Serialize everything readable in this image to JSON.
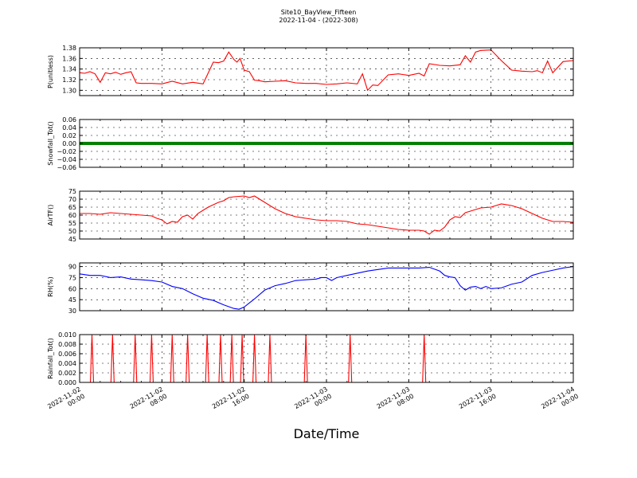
{
  "chart_data": {
    "type": "line",
    "title": "Site10_BayView_Fifteen",
    "subtitle": "2022-11-04 - (2022-308)",
    "xlabel": "Date/Time",
    "x_ticks": [
      "2022-11-02 00:00",
      "2022-11-02 08:00",
      "2022-11-02 16:00",
      "2022-11-03 00:00",
      "2022-11-03 08:00",
      "2022-11-03 16:00",
      "2022-11-04 00:00"
    ],
    "xlim_hours": [
      0,
      48
    ],
    "grid": true,
    "panels": [
      {
        "ylabel": "P(unitless)",
        "ylim": [
          1.29,
          1.38
        ],
        "yticks": [
          "1.30",
          "1.32",
          "1.34",
          "1.36",
          "1.38"
        ],
        "color": "#ff0000",
        "hours": [
          0,
          0.5,
          1,
          1.5,
          2,
          2.5,
          3,
          3.5,
          4,
          4.5,
          5,
          5.5,
          6,
          7,
          8,
          9,
          10,
          11,
          12,
          13,
          13.5,
          14,
          14.5,
          15,
          15.3,
          15.6,
          16,
          16.5,
          17,
          17.5,
          18,
          19,
          20,
          21,
          22,
          23,
          24,
          25,
          26,
          27,
          27.5,
          28,
          28.5,
          29,
          30,
          31,
          32,
          33,
          33.5,
          34,
          35,
          36,
          37,
          37.5,
          38,
          38.5,
          39,
          40,
          41,
          42,
          43,
          44,
          44.5,
          45,
          45.5,
          46,
          47,
          48
        ],
        "values": [
          1.333,
          1.332,
          1.335,
          1.331,
          1.315,
          1.333,
          1.331,
          1.334,
          1.33,
          1.333,
          1.335,
          1.314,
          1.313,
          1.313,
          1.312,
          1.317,
          1.312,
          1.315,
          1.312,
          1.353,
          1.352,
          1.355,
          1.372,
          1.358,
          1.353,
          1.36,
          1.338,
          1.335,
          1.319,
          1.318,
          1.316,
          1.317,
          1.318,
          1.314,
          1.313,
          1.313,
          1.311,
          1.312,
          1.314,
          1.312,
          1.331,
          1.3,
          1.31,
          1.309,
          1.329,
          1.331,
          1.328,
          1.332,
          1.327,
          1.35,
          1.347,
          1.346,
          1.348,
          1.365,
          1.353,
          1.372,
          1.375,
          1.376,
          1.356,
          1.338,
          1.336,
          1.335,
          1.337,
          1.333,
          1.355,
          1.333,
          1.354,
          1.356
        ]
      },
      {
        "ylabel": "Snowfall_Tot()",
        "ylim": [
          -0.06,
          0.06
        ],
        "yticks": [
          "0.06",
          "0.04",
          "0.02",
          "0.00",
          "−0.02",
          "−0.04",
          "−0.06"
        ],
        "color": "#008000",
        "hours": [
          0,
          48
        ],
        "values": [
          0,
          0
        ]
      },
      {
        "ylabel": "AirTF()",
        "ylim": [
          45,
          75
        ],
        "yticks": [
          "45",
          "50",
          "55",
          "60",
          "65",
          "70",
          "75"
        ],
        "color": "#ff0000",
        "hours": [
          0,
          1,
          2,
          3,
          4,
          5,
          6,
          7,
          7.5,
          8,
          8.5,
          9,
          9.5,
          10,
          10.5,
          11,
          11.5,
          12,
          12.5,
          13,
          13.5,
          14,
          14.5,
          15,
          16,
          16.5,
          17,
          18,
          19,
          20,
          21,
          22,
          23,
          24,
          25,
          26,
          27,
          28,
          29,
          30,
          31,
          32,
          32.5,
          33,
          33.5,
          34,
          34.5,
          35,
          35.5,
          36,
          36.5,
          37,
          37.5,
          38,
          39,
          40,
          41,
          42,
          43,
          44,
          45,
          46,
          47,
          48
        ],
        "values": [
          61,
          61,
          60.5,
          61.5,
          61,
          60.5,
          60,
          59.5,
          58,
          57,
          54.5,
          56,
          55.5,
          59,
          60,
          57.5,
          61,
          63,
          65,
          66.5,
          68,
          69,
          71,
          71.5,
          72,
          71,
          72,
          68,
          64,
          61,
          59,
          58,
          57,
          56.5,
          56.5,
          56,
          54.5,
          54,
          53,
          52,
          51,
          50.5,
          50.5,
          50.5,
          50,
          48,
          50.5,
          50,
          52.5,
          57,
          59,
          58.5,
          61.5,
          62.5,
          64.5,
          65,
          67,
          66,
          64,
          61,
          58,
          56,
          56,
          55.5
        ]
      },
      {
        "ylabel": "RH(%)",
        "ylim": [
          30,
          95
        ],
        "yticks": [
          "30",
          "45",
          "60",
          "75",
          "90"
        ],
        "color": "#0000ff",
        "hours": [
          0,
          1,
          2,
          3,
          4,
          5,
          6,
          7,
          8,
          9,
          10,
          11,
          12,
          13,
          14,
          15,
          15.5,
          16,
          17,
          18,
          19,
          20,
          21,
          22,
          23,
          23.5,
          24,
          24.5,
          25,
          26,
          27,
          28,
          29,
          30,
          31,
          32,
          33,
          34,
          35,
          35.5,
          36,
          36.5,
          37,
          37.5,
          38,
          38.5,
          39,
          39.5,
          40,
          41,
          42,
          43,
          44,
          45,
          46,
          47,
          48
        ],
        "values": [
          80,
          78,
          78,
          75,
          76,
          73,
          72,
          71,
          69,
          63,
          60,
          53,
          47,
          44,
          38,
          33,
          32,
          35,
          46,
          58,
          64,
          67,
          71,
          72,
          73,
          75,
          75,
          71,
          75,
          78,
          81,
          84,
          86,
          88,
          88,
          88,
          88,
          89,
          84,
          78,
          76,
          75,
          64,
          58,
          62,
          63,
          60,
          63,
          60,
          61,
          66,
          69,
          78,
          82,
          85,
          88,
          90
        ]
      },
      {
        "ylabel": "Rainfall_Tot()",
        "ylim": [
          0,
          0.01
        ],
        "yticks": [
          "0.000",
          "0.002",
          "0.004",
          "0.006",
          "0.008",
          "0.010"
        ],
        "color": "#ff0000",
        "spike_hours": [
          1.2,
          3.2,
          5.4,
          7.0,
          9.0,
          10.5,
          12.4,
          13.7,
          14.8,
          15.8,
          17.0,
          18.5,
          22.0,
          26.3,
          33.5
        ],
        "spike_value": 0.01
      }
    ]
  }
}
